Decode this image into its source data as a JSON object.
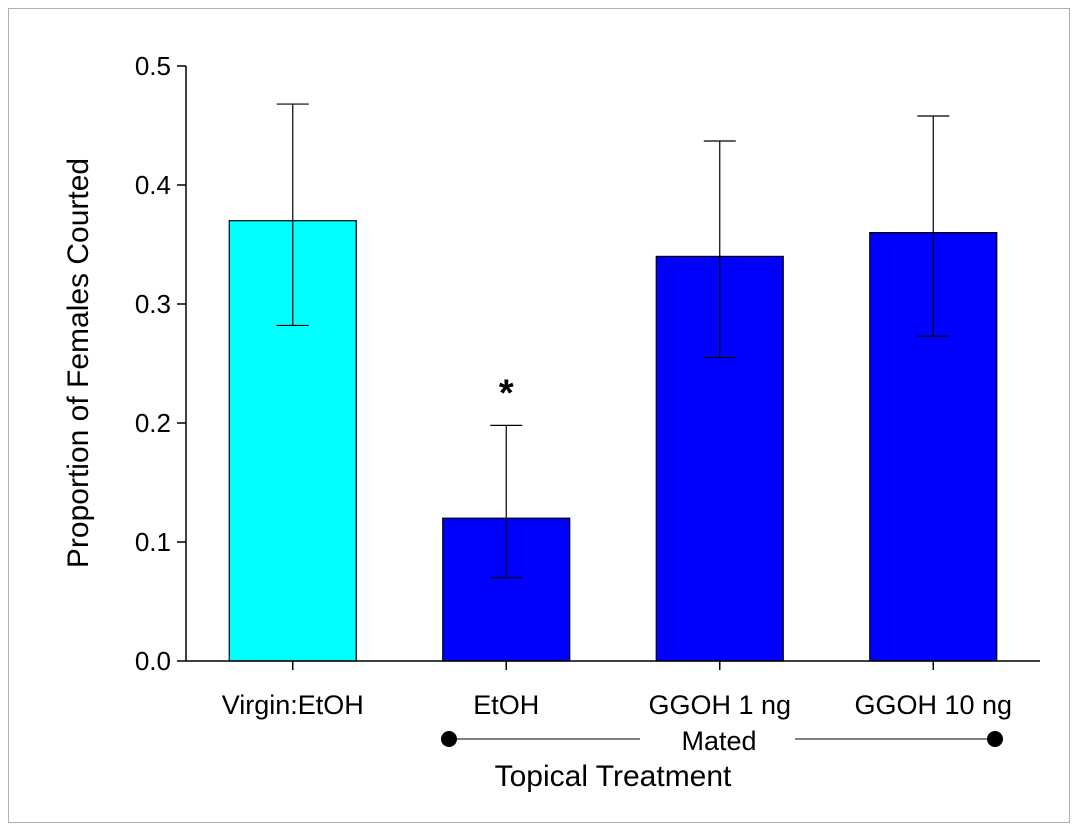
{
  "chart_data": {
    "type": "bar",
    "categories": [
      "Virgin:EtOH",
      "EtOH",
      "GGOH 1 ng",
      "GGOH 10 ng"
    ],
    "values": [
      0.37,
      0.12,
      0.34,
      0.36
    ],
    "error_upper": [
      0.468,
      0.198,
      0.437,
      0.458
    ],
    "error_lower": [
      0.282,
      0.07,
      0.255,
      0.273
    ],
    "bar_colors": [
      "#00ffff",
      "#0000ff",
      "#0000ff",
      "#0000ff"
    ],
    "ylabel": "Proportion of Females Courted",
    "xlabel": "Topical Treatment",
    "ylim": [
      0,
      0.5
    ],
    "yticks": [
      "0.0",
      "0.1",
      "0.2",
      "0.3",
      "0.4",
      "0.5"
    ],
    "annotations": [
      {
        "category": "EtOH",
        "text": "*"
      }
    ],
    "group_bracket": {
      "label": "Mated",
      "from": "EtOH",
      "to": "GGOH 10 ng"
    },
    "grid": false
  }
}
